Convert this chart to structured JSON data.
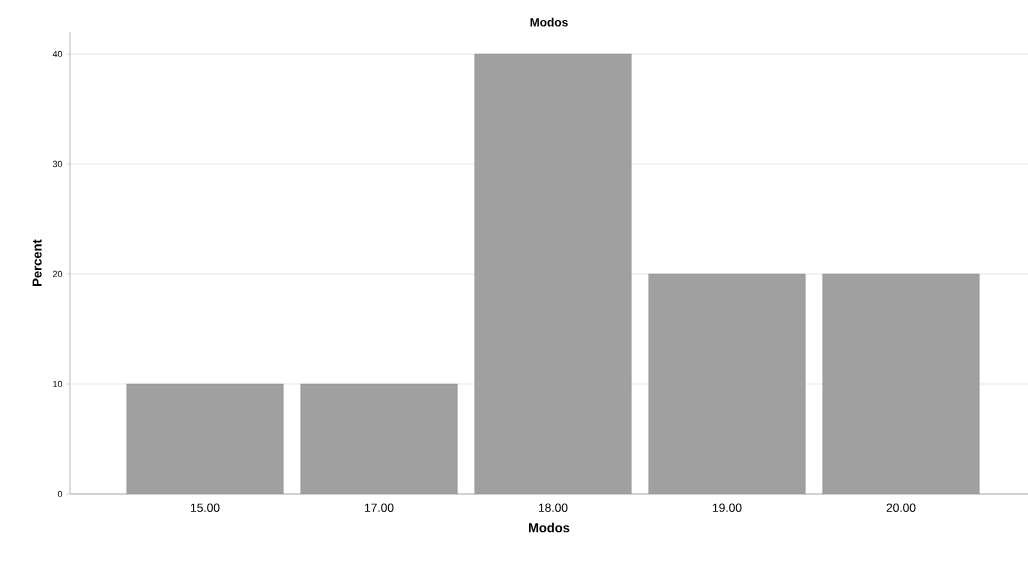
{
  "chart_data": {
    "type": "bar",
    "title": "Modos",
    "xlabel": "Modos",
    "ylabel": "Percent",
    "categories": [
      "15.00",
      "17.00",
      "18.00",
      "19.00",
      "20.00"
    ],
    "values": [
      10,
      10,
      40,
      20,
      20
    ],
    "color": "#a0a0a0",
    "ylim": [
      0,
      42
    ],
    "yticks": [
      0,
      10,
      20,
      30,
      40
    ],
    "grid": "y"
  }
}
